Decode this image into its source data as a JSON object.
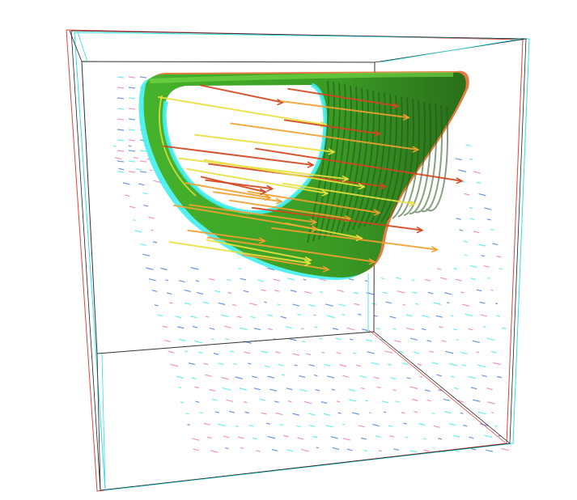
{
  "scene": {
    "kind": "3D vector field visualization (anaglyph stereo)",
    "background": "#ffffff",
    "colors": {
      "left_eye_edge": "#e8403a",
      "right_eye_edge": "#2fe0e6",
      "box_edge": "#1a1a1a",
      "isosurface_dark": "#2f7d1e",
      "isosurface_mid": "#3fae2a",
      "isosurface_light": "#5cd23a",
      "isosurface_halo": "#3ff0ee",
      "arrow_strong": "#d2461e",
      "arrow_medium": "#f0a030",
      "arrow_weak": "#e8e040",
      "arrow_faint_cyan": "#39e8ea",
      "arrow_faint_pink": "#ee6fb0",
      "arrow_faint_blue": "#3a6fd8"
    },
    "icons": [
      "bounding-box",
      "isosurface",
      "vector-glyphs"
    ]
  }
}
